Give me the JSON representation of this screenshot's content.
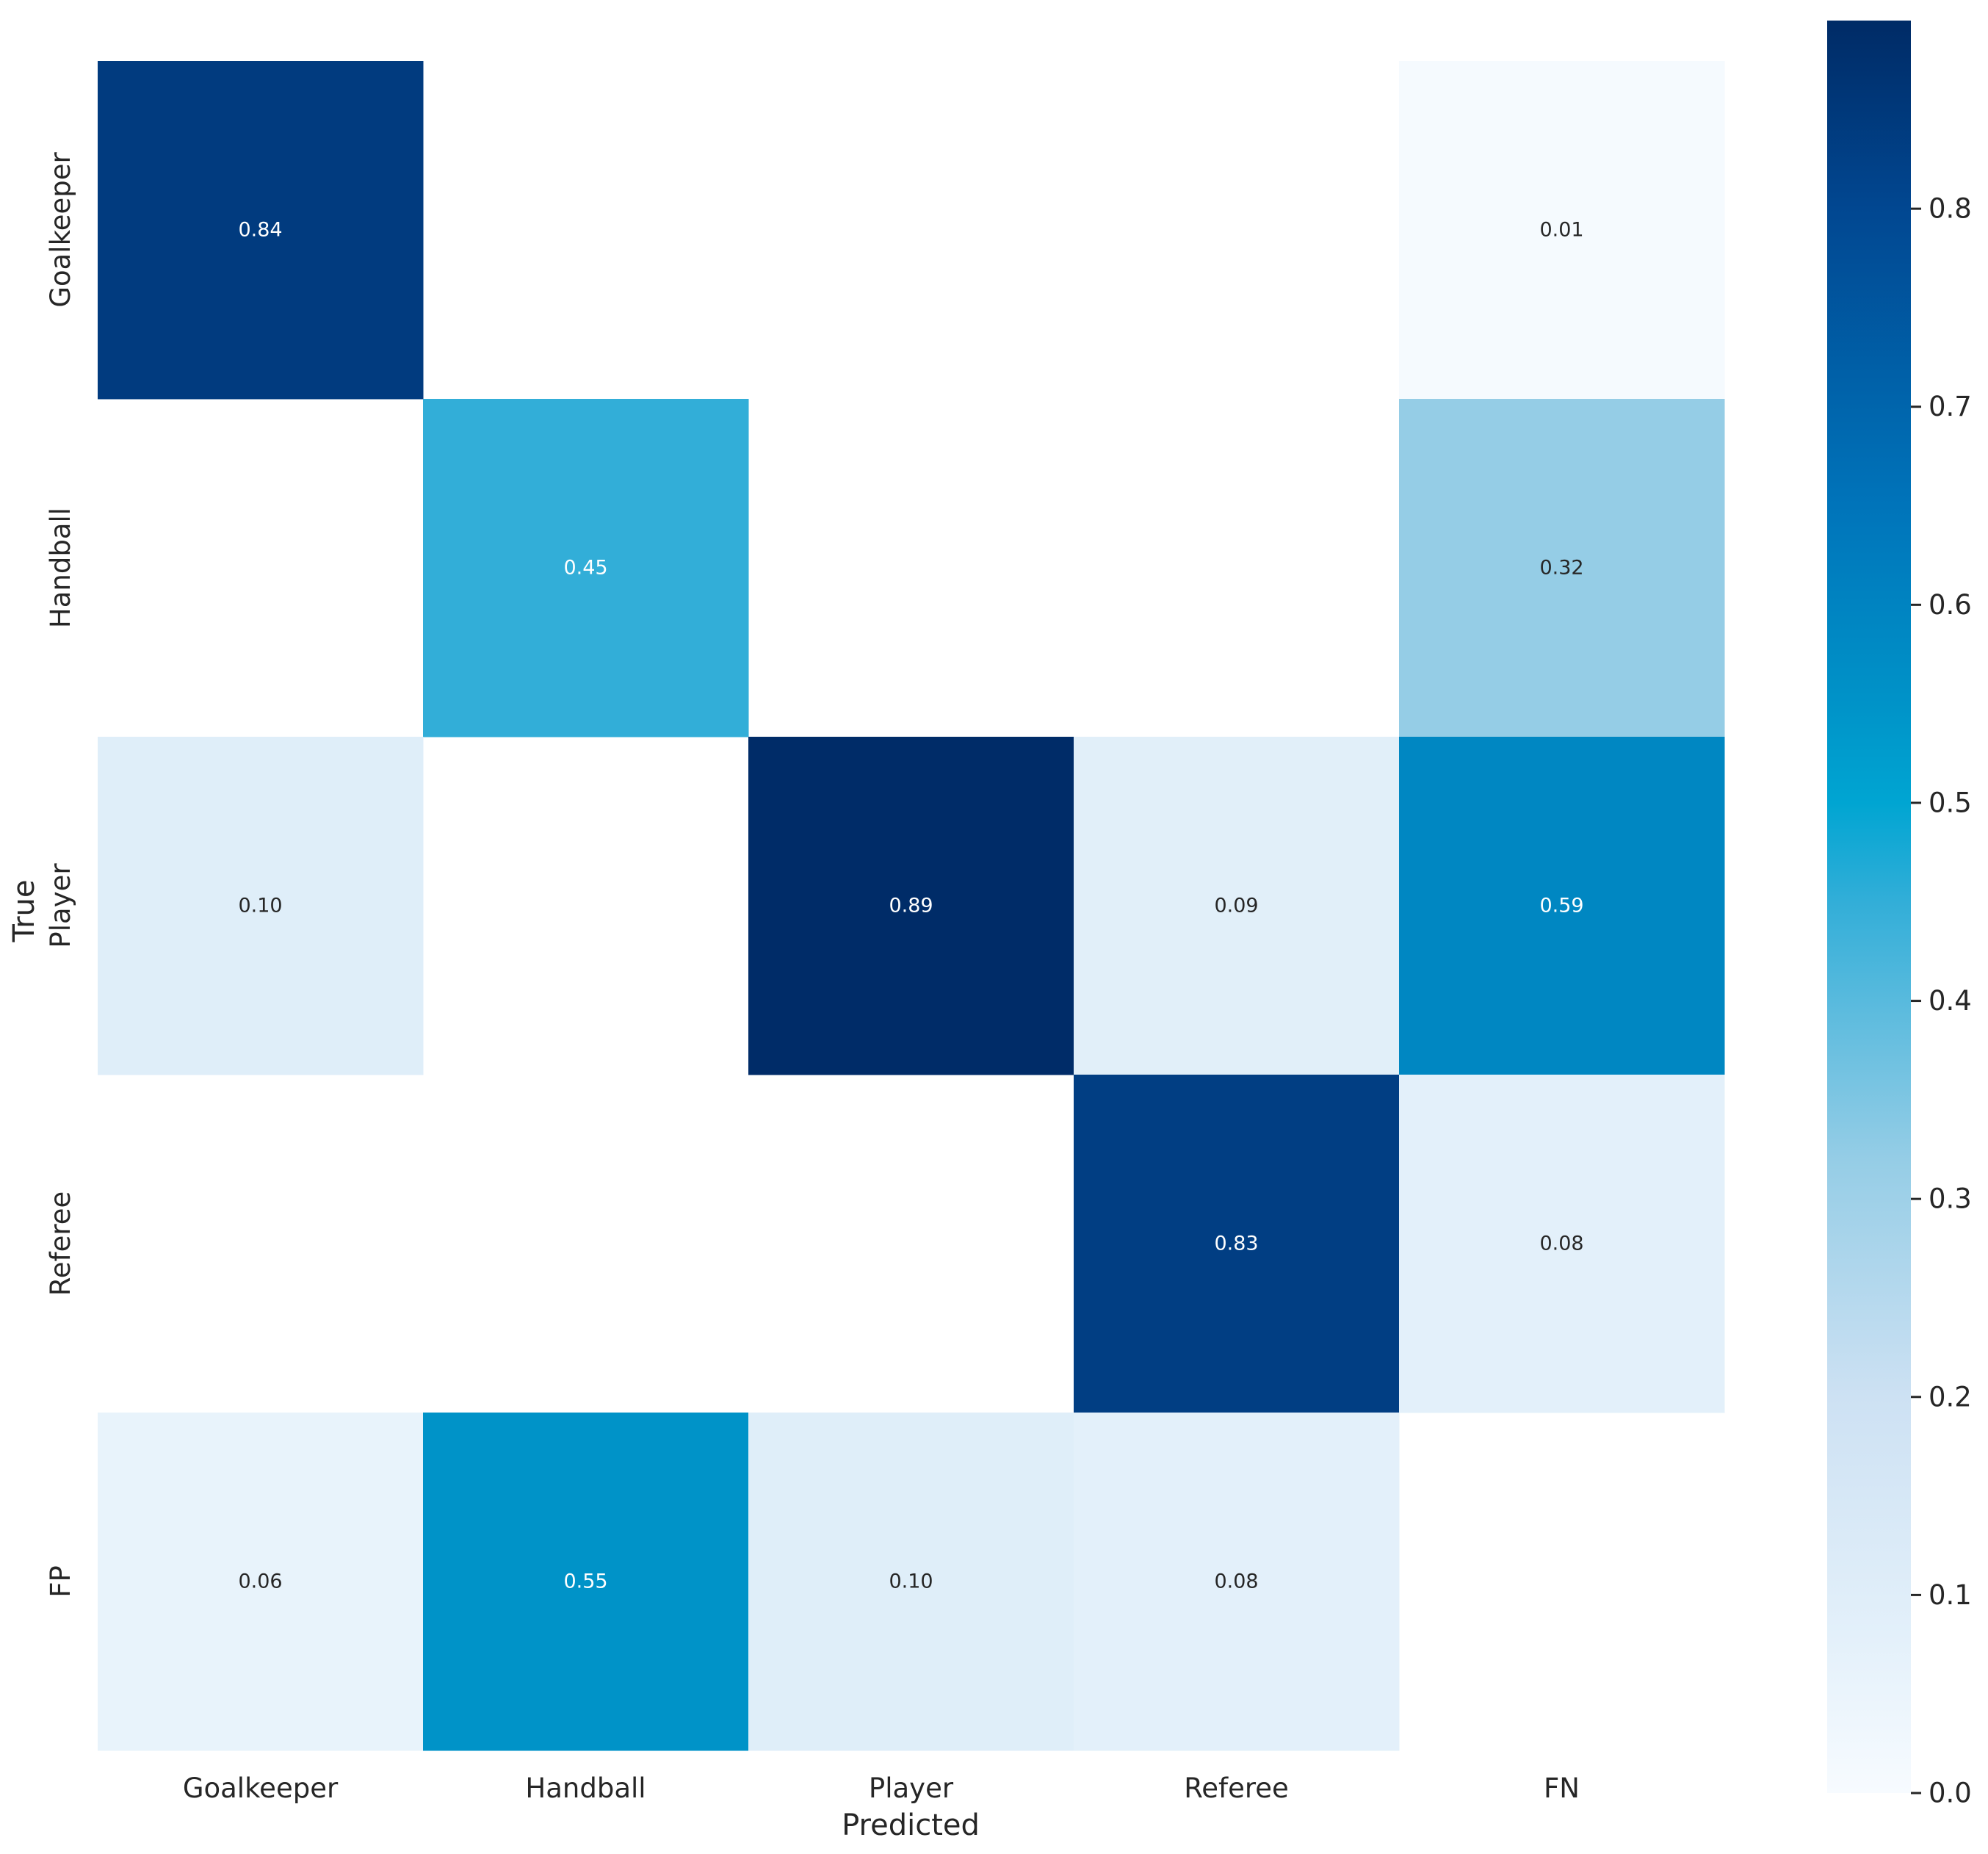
{
  "chart_data": {
    "type": "heatmap",
    "title": "",
    "xlabel": "Predicted",
    "ylabel": "True",
    "x_categories": [
      "Goalkeeper",
      "Handball",
      "Player",
      "Referee",
      "FN"
    ],
    "y_categories": [
      "Goalkeeper",
      "Handball",
      "Player",
      "Referee",
      "FP"
    ],
    "values": [
      [
        0.84,
        null,
        null,
        null,
        0.01
      ],
      [
        null,
        0.45,
        null,
        null,
        0.32
      ],
      [
        0.1,
        null,
        0.89,
        0.09,
        0.59
      ],
      [
        null,
        null,
        null,
        0.83,
        0.08
      ],
      [
        0.06,
        0.55,
        0.1,
        0.08,
        null
      ]
    ],
    "value_labels": [
      [
        "0.84",
        "",
        "",
        "",
        "0.01"
      ],
      [
        "",
        "0.45",
        "",
        "",
        "0.32"
      ],
      [
        "0.10",
        "",
        "0.89",
        "0.09",
        "0.59"
      ],
      [
        "",
        "",
        "",
        "0.83",
        "0.08"
      ],
      [
        "0.06",
        "0.55",
        "0.10",
        "0.08",
        ""
      ]
    ],
    "colormap": "Blues",
    "colorbar": {
      "range": [
        0.0,
        0.895
      ],
      "ticks": [
        0.0,
        0.1,
        0.2,
        0.3,
        0.4,
        0.5,
        0.6,
        0.7,
        0.8
      ],
      "tick_labels": [
        "0.0",
        "0.1",
        "0.2",
        "0.3",
        "0.4",
        "0.5",
        "0.6",
        "0.7",
        "0.8"
      ],
      "stops": [
        {
          "value": 0.0,
          "color": "#f7fbff"
        },
        {
          "value": 0.08,
          "color": "#e3f0fa"
        },
        {
          "value": 0.2,
          "color": "#cde1f3"
        },
        {
          "value": 0.32,
          "color": "#95cde6"
        },
        {
          "value": 0.45,
          "color": "#32aed8"
        },
        {
          "value": 0.5,
          "color": "#00a5d2"
        },
        {
          "value": 0.55,
          "color": "#0093c8"
        },
        {
          "value": 0.65,
          "color": "#0074ba"
        },
        {
          "value": 0.8,
          "color": "#014791"
        },
        {
          "value": 0.895,
          "color": "#002b66"
        }
      ]
    },
    "grid": false
  }
}
